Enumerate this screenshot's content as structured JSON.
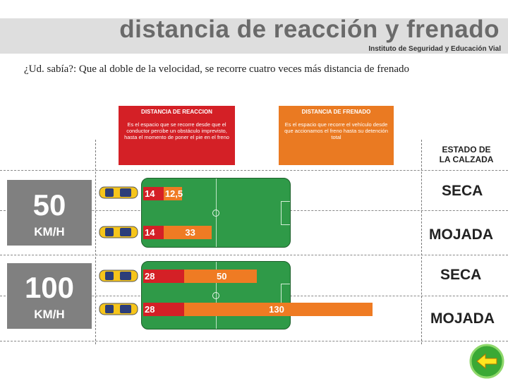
{
  "title": "distancia de reacción y frenado",
  "institute": "Instituto de Seguridad y Educación Vial",
  "question": "¿Ud. sabía?: Que al doble de la velocidad, se recorre cuatro veces más  distancia de frenado",
  "legend": {
    "reaction": {
      "title": "DISTANCIA DE REACCION",
      "text": "Es el espacio que se recorre desde que el conductor percibe un obstáculo imprevisto, hasta el momento de poner el pie en el freno",
      "color": "#d42026"
    },
    "braking": {
      "title": "DISTANCIA DE FRENADO",
      "text": "Es el espacio que  recorre el vehículo desde que accionamos el freno hasta su detención total",
      "color": "#ea7a22"
    }
  },
  "estado_header": {
    "line1": "ESTADO DE",
    "line2": "LA CALZADA"
  },
  "groups": [
    {
      "speed": "50",
      "unit": "KM/H",
      "rows": [
        {
          "reaction": 14,
          "braking": 12.5,
          "reaction_label": "14",
          "braking_label": "12,5",
          "condition": "SECA"
        },
        {
          "reaction": 14,
          "braking": 33,
          "reaction_label": "14",
          "braking_label": "33",
          "condition": "MOJADA"
        }
      ]
    },
    {
      "speed": "100",
      "unit": "KM/H",
      "rows": [
        {
          "reaction": 28,
          "braking": 50,
          "reaction_label": "28",
          "braking_label": "50",
          "condition": "SECA"
        },
        {
          "reaction": 28,
          "braking": 130,
          "reaction_label": "28",
          "braking_label": "130",
          "condition": "MOJADA"
        }
      ]
    }
  ],
  "back_icon": "back-arrow-icon"
}
